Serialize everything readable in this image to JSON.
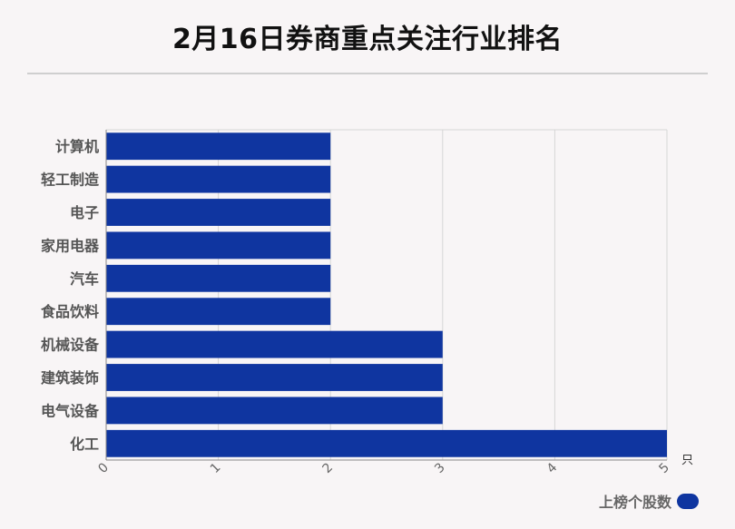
{
  "title": "2月16日券商重点关注行业排名",
  "chart_data": {
    "type": "bar",
    "orientation": "horizontal",
    "categories": [
      "计算机",
      "轻工制造",
      "电子",
      "家用电器",
      "汽车",
      "食品饮料",
      "机械设备",
      "建筑装饰",
      "电气设备",
      "化工"
    ],
    "series": [
      {
        "name": "上榜个股数",
        "values": [
          2,
          2,
          2,
          2,
          2,
          2,
          3,
          3,
          3,
          5
        ]
      }
    ],
    "xlim": [
      0,
      5
    ],
    "x_ticks": [
      "0",
      "1",
      "2",
      "3",
      "4",
      "5"
    ],
    "x_unit": "只",
    "grid": true,
    "legend_position": "bottom-right"
  },
  "colors": {
    "bar": "#0f35a0",
    "grid": "#d6d6d6",
    "axis": "#888888"
  }
}
